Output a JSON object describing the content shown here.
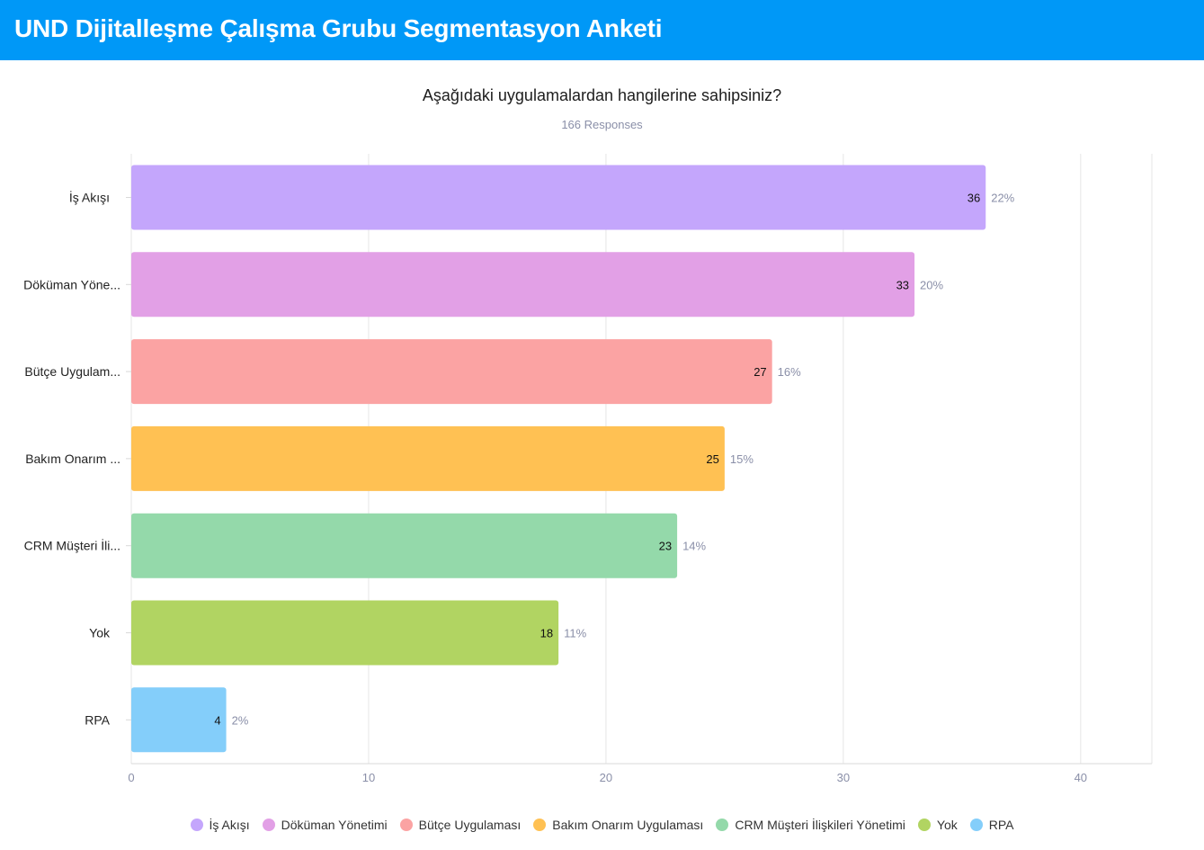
{
  "header": {
    "title": "UND Dijitalleşme Çalışma Grubu Segmentasyon Anketi"
  },
  "survey": {
    "question": "Aşağıdaki uygulamalardan hangilerine sahipsiniz?",
    "responses": "166 Responses"
  },
  "chart_data": {
    "type": "bar",
    "orientation": "horizontal",
    "categories": [
      "İş Akışı",
      "Döküman Yönetimi",
      "Bütçe Uygulaması",
      "Bakım Onarım Uygulaması",
      "CRM Müşteri İlişkileri Yönetimi",
      "Yok",
      "RPA"
    ],
    "category_labels_display": [
      "İş Akışı",
      "Döküman Yöne...",
      "Bütçe Uygulam...",
      "Bakım Onarım ...",
      "CRM Müşteri İli...",
      "Yok",
      "RPA"
    ],
    "values": [
      36,
      33,
      27,
      25,
      23,
      18,
      4
    ],
    "percent_labels": [
      "22%",
      "20%",
      "16%",
      "15%",
      "14%",
      "11%",
      "2%"
    ],
    "colors": [
      "#c4a6fc",
      "#e2a0e6",
      "#fba3a3",
      "#ffc153",
      "#94d9aa",
      "#b1d462",
      "#84cefa"
    ],
    "xlim": [
      0,
      43
    ],
    "xticks": [
      0,
      10,
      20,
      30,
      40
    ],
    "grid": true,
    "legend_position": "bottom"
  }
}
